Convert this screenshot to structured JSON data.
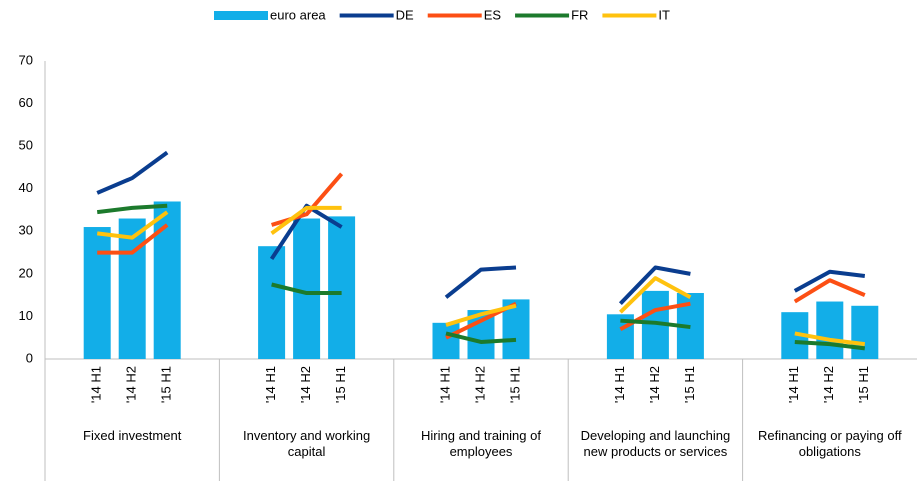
{
  "chart_data": {
    "type": "grouped-bar-line",
    "groups": [
      "Fixed investment",
      "Inventory and working capital",
      "Hiring and training of employees",
      "Developing and launching new products or services",
      "Refinancing or paying off obligations"
    ],
    "categories": [
      "'14 H1",
      "'14 H2",
      "'15 H1",
      "'14 H1",
      "'14 H2",
      "'15 H1",
      "'14 H1",
      "'14 H2",
      "'15 H1",
      "'14 H1",
      "'14 H2",
      "'15 H1",
      "'14 H1",
      "'14 H2",
      "'15 H1"
    ],
    "series": [
      {
        "name": "euro area",
        "kind": "bar",
        "color": "#12aee8",
        "values": [
          31,
          33,
          37,
          26.5,
          33,
          33.5,
          8.5,
          11.5,
          14,
          10.5,
          16,
          15.5,
          11,
          13.5,
          12.5
        ]
      },
      {
        "name": "DE",
        "kind": "line",
        "color": "#0a3d8f",
        "values": [
          39,
          42.5,
          48.5,
          23.5,
          36,
          31,
          14.5,
          21,
          21.5,
          13,
          21.5,
          20,
          16,
          20.5,
          19.5
        ]
      },
      {
        "name": "ES",
        "kind": "line",
        "color": "#fc4f14",
        "values": [
          25,
          25,
          31.5,
          31.5,
          34,
          43.5,
          5,
          9,
          13,
          7,
          11.5,
          13,
          13.5,
          18.5,
          15
        ]
      },
      {
        "name": "FR",
        "kind": "line",
        "color": "#1c7a2c",
        "values": [
          34.5,
          35.5,
          36,
          17.5,
          15.5,
          15.5,
          6,
          4,
          4.5,
          9,
          8.5,
          7.5,
          4,
          3.5,
          2.5
        ]
      },
      {
        "name": "IT",
        "kind": "line",
        "color": "#ffc20e",
        "values": [
          29.5,
          28.5,
          34.5,
          29.5,
          35.5,
          35.5,
          8,
          10.5,
          12.5,
          11,
          19,
          14.5,
          6,
          4.5,
          3.5
        ]
      }
    ],
    "ylim": [
      0,
      70
    ],
    "yticks": [
      0,
      10,
      20,
      30,
      40,
      50,
      60,
      70
    ],
    "grid": false
  }
}
